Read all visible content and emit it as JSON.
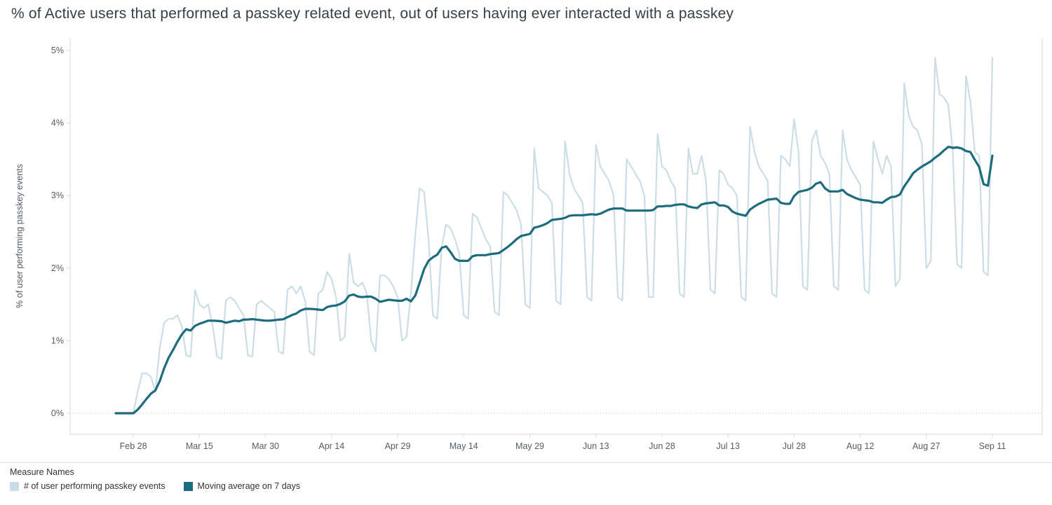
{
  "title": "% of Active users that performed a passkey related event, out of users having ever interacted with a passkey",
  "colors": {
    "daily_line": "#cbdee6",
    "moving_avg_line": "#1c6c7d",
    "axis_line": "#d9d9d9",
    "zero_grid_line": "#b9b9b9",
    "tick_label": "#555c63",
    "title_text": "#333f48"
  },
  "y_axis": {
    "label": "% of user performing passkey events",
    "ticks": [
      "0%",
      "1%",
      "2%",
      "3%",
      "4%",
      "5%"
    ],
    "min": 0,
    "max": 5
  },
  "x_axis": {
    "tick_labels": [
      "Feb 28",
      "Mar 15",
      "Mar 30",
      "Apr 14",
      "Apr 29",
      "May 14",
      "May 29",
      "Jun 13",
      "Jun 28",
      "Jul 13",
      "Jul 28",
      "Aug 12",
      "Aug 27",
      "Sep 11"
    ],
    "tick_day_indices": [
      4,
      19,
      34,
      49,
      64,
      79,
      94,
      109,
      124,
      139,
      154,
      169,
      184,
      199
    ]
  },
  "legend": {
    "title": "Measure Names",
    "items": [
      {
        "label": "# of user performing passkey events",
        "color": "#cbdee6"
      },
      {
        "label": "Moving average on 7 days",
        "color": "#1c6c7d"
      }
    ]
  },
  "chart_data": {
    "type": "line",
    "title": "% of Active users that performed a passkey related event, out of users having ever interacted with a passkey",
    "xlabel": "",
    "ylabel": "% of user performing passkey events",
    "ylim": [
      0,
      5
    ],
    "y_tick_labels": [
      "0%",
      "1%",
      "2%",
      "3%",
      "4%",
      "5%"
    ],
    "x_tick_labels": [
      "Feb 28",
      "Mar 15",
      "Mar 30",
      "Apr 14",
      "Apr 29",
      "May 14",
      "May 29",
      "Jun 13",
      "Jun 28",
      "Jul 13",
      "Jul 28",
      "Aug 12",
      "Aug 27",
      "Sep 11"
    ],
    "x_tick_day_indices": [
      4,
      19,
      34,
      49,
      64,
      79,
      94,
      109,
      124,
      139,
      154,
      169,
      184,
      199
    ],
    "x_start_date": "Feb 24",
    "x_end_date": "Sep 11",
    "grid": "dotted zero line only",
    "legend_position": "bottom-left",
    "unit": "%",
    "series": [
      {
        "name": "# of user performing passkey events",
        "color": "#cbdee6",
        "values": [
          0.0,
          0.0,
          0.0,
          0.0,
          0.0,
          0.3,
          0.55,
          0.55,
          0.5,
          0.3,
          0.9,
          1.25,
          1.3,
          1.3,
          1.35,
          1.2,
          0.8,
          0.78,
          1.7,
          1.5,
          1.45,
          1.5,
          1.2,
          0.78,
          0.75,
          1.55,
          1.6,
          1.55,
          1.45,
          1.35,
          0.8,
          0.78,
          1.5,
          1.55,
          1.5,
          1.45,
          1.4,
          0.85,
          0.82,
          1.7,
          1.75,
          1.65,
          1.75,
          1.55,
          0.85,
          0.8,
          1.65,
          1.7,
          1.95,
          1.85,
          1.6,
          1.0,
          1.05,
          2.2,
          1.8,
          1.75,
          1.8,
          1.65,
          1.0,
          0.85,
          1.9,
          1.9,
          1.85,
          1.75,
          1.6,
          1.0,
          1.05,
          1.65,
          2.45,
          3.1,
          3.05,
          2.4,
          1.35,
          1.3,
          2.3,
          2.6,
          2.55,
          2.4,
          2.2,
          1.35,
          1.3,
          2.75,
          2.7,
          2.55,
          2.4,
          2.3,
          1.4,
          1.35,
          3.05,
          3.0,
          2.9,
          2.8,
          2.6,
          1.5,
          1.45,
          3.65,
          3.1,
          3.05,
          3.0,
          2.9,
          1.55,
          1.5,
          3.75,
          3.3,
          3.1,
          3.0,
          2.9,
          1.6,
          1.55,
          3.7,
          3.4,
          3.3,
          3.2,
          3.0,
          1.6,
          1.55,
          3.5,
          3.4,
          3.3,
          3.2,
          3.0,
          1.6,
          1.6,
          3.85,
          3.4,
          3.35,
          3.2,
          3.1,
          1.65,
          1.6,
          3.65,
          3.3,
          3.3,
          3.55,
          3.2,
          1.7,
          1.65,
          3.35,
          3.3,
          3.15,
          3.1,
          3.0,
          1.6,
          1.55,
          3.95,
          3.6,
          3.4,
          3.3,
          3.2,
          1.65,
          1.6,
          3.55,
          3.5,
          3.4,
          4.05,
          3.6,
          1.75,
          1.7,
          3.75,
          3.9,
          3.55,
          3.45,
          3.3,
          1.75,
          1.7,
          3.9,
          3.5,
          3.35,
          3.25,
          3.15,
          1.7,
          1.65,
          3.75,
          3.5,
          3.3,
          3.55,
          3.4,
          1.75,
          1.85,
          4.55,
          4.1,
          3.95,
          3.9,
          3.7,
          2.0,
          2.1,
          4.9,
          4.4,
          4.35,
          4.25,
          3.6,
          2.05,
          2.0,
          4.65,
          4.3,
          3.6,
          3.55,
          1.95,
          1.9,
          4.9
        ]
      },
      {
        "name": "Moving average on 7 days",
        "color": "#1c6c7d",
        "derived": "trailing 7-day average of the daily series"
      }
    ]
  }
}
